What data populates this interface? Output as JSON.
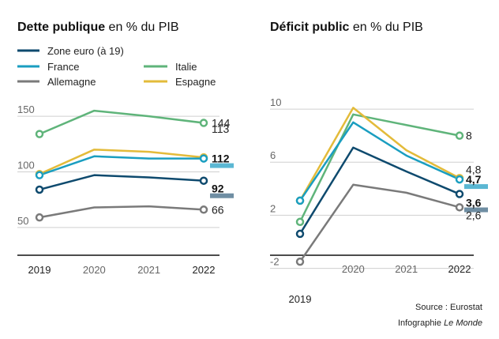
{
  "legend": [
    {
      "key": "zone",
      "label": "Zone euro (à 19)",
      "color": "#0e4a6e"
    },
    {
      "key": "france",
      "label": "France",
      "color": "#1a9ec0"
    },
    {
      "key": "allemagne",
      "label": "Allemagne",
      "color": "#7a7a7a"
    },
    {
      "key": "italie",
      "label": "Italie",
      "color": "#5fb47a"
    },
    {
      "key": "espagne",
      "label": "Espagne",
      "color": "#e3bb3a"
    }
  ],
  "footer": {
    "source": "Source : Eurostat",
    "credit_prefix": "Infographie ",
    "credit_italic": "Le Monde"
  },
  "chart_data": [
    {
      "type": "line",
      "title_bold": "Dette publique",
      "title_rest": " en % du PIB",
      "x": [
        "2019",
        "2020",
        "2021",
        "2022"
      ],
      "yticks": [
        "50",
        "100",
        "150"
      ],
      "ylim": [
        25,
        165
      ],
      "series": [
        {
          "name": "Italie",
          "color": "#5fb47a",
          "values": [
            134,
            155,
            150,
            144
          ],
          "label": "144",
          "bold": false,
          "highlight": null
        },
        {
          "name": "Espagne",
          "color": "#e3bb3a",
          "values": [
            98,
            120,
            118,
            113
          ],
          "label": "113",
          "bold": false,
          "highlight": null
        },
        {
          "name": "France",
          "color": "#1a9ec0",
          "values": [
            97,
            114,
            112,
            112
          ],
          "label": "112",
          "bold": true,
          "highlight": "#5bb7d3"
        },
        {
          "name": "Zone euro (à 19)",
          "color": "#0e4a6e",
          "values": [
            84,
            97,
            95,
            92
          ],
          "label": "92",
          "bold": true,
          "highlight": "#6f8ea3"
        },
        {
          "name": "Allemagne",
          "color": "#7a7a7a",
          "values": [
            59,
            68,
            69,
            66
          ],
          "label": "66",
          "bold": false,
          "highlight": null
        }
      ]
    },
    {
      "type": "line",
      "title_bold": "Déficit public",
      "title_rest": " en % du PIB",
      "x": [
        "2019",
        "2020",
        "2021",
        "2022"
      ],
      "yticks": [
        "-2",
        "2",
        "6",
        "10"
      ],
      "ylim": [
        -2.8,
        10.6
      ],
      "series": [
        {
          "name": "Italie",
          "color": "#5fb47a",
          "values": [
            1.5,
            9.6,
            8.8,
            8.0
          ],
          "label": "8",
          "bold": false,
          "highlight": null
        },
        {
          "name": "Espagne",
          "color": "#e3bb3a",
          "values": [
            3.1,
            10.1,
            6.9,
            4.8
          ],
          "label": "4,8",
          "bold": false,
          "highlight": null
        },
        {
          "name": "France",
          "color": "#1a9ec0",
          "values": [
            3.1,
            9.0,
            6.5,
            4.7
          ],
          "label": "4,7",
          "bold": true,
          "highlight": "#5bb7d3"
        },
        {
          "name": "Zone euro (à 19)",
          "color": "#0e4a6e",
          "values": [
            0.6,
            7.1,
            5.3,
            3.6
          ],
          "label": "3,6",
          "bold": true,
          "highlight": "#6f8ea3"
        },
        {
          "name": "Allemagne",
          "color": "#7a7a7a",
          "values": [
            -1.5,
            4.3,
            3.7,
            2.6
          ],
          "label": "2,6",
          "bold": false,
          "highlight": null
        }
      ]
    }
  ]
}
